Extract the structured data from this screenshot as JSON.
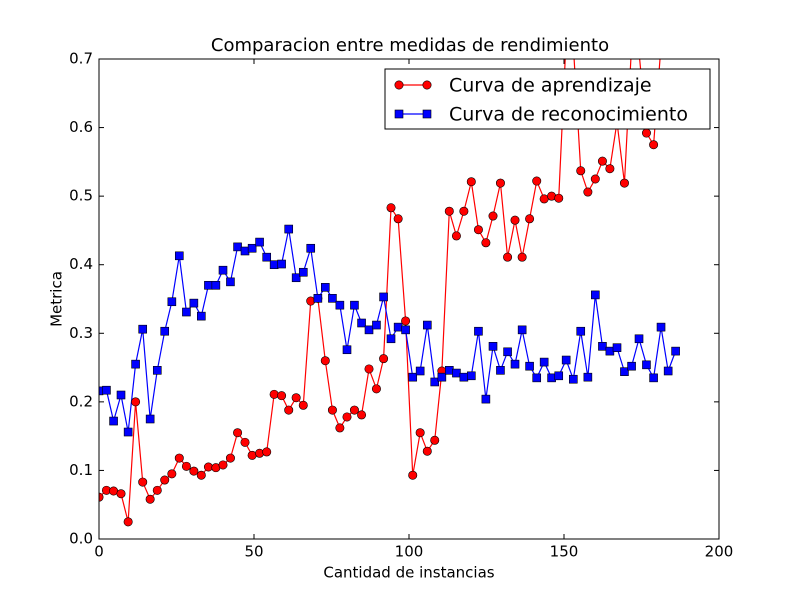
{
  "chart_data": {
    "type": "line",
    "title": "Comparacion entre medidas de rendimiento",
    "xlabel": "Cantidad de instancias",
    "ylabel": "Metrica",
    "x": [
      0,
      2.4,
      4.7,
      7.1,
      9.4,
      11.8,
      14.1,
      16.5,
      18.8,
      21.2,
      23.5,
      25.9,
      28.2,
      30.6,
      33.0,
      35.3,
      37.7,
      40.0,
      42.4,
      44.7,
      47.1,
      49.4,
      51.8,
      54.1,
      56.5,
      58.9,
      61.2,
      63.6,
      65.9,
      68.3,
      70.6,
      73.0,
      75.3,
      77.7,
      80.0,
      82.4,
      84.7,
      87.1,
      89.5,
      91.8,
      94.2,
      96.5,
      98.9,
      101.2,
      103.6,
      105.9,
      108.3,
      110.6,
      113.0,
      115.3,
      117.7,
      120.1,
      122.4,
      124.8,
      127.1,
      129.5,
      131.8,
      134.2,
      136.5,
      138.9,
      141.2,
      143.6,
      146.0,
      148.3,
      150.7,
      153.0,
      155.4,
      157.7,
      160.1,
      162.4,
      164.8,
      167.1,
      169.5,
      171.8,
      174.2,
      176.6,
      178.9,
      181.3,
      183.6,
      186.0
    ],
    "series": [
      {
        "name": "Curva de aprendizaje",
        "color": "#ff0000",
        "marker": "circle",
        "values": [
          0.061,
          0.071,
          0.07,
          0.066,
          0.025,
          0.2,
          0.083,
          0.058,
          0.071,
          0.086,
          0.095,
          0.118,
          0.106,
          0.099,
          0.093,
          0.105,
          0.104,
          0.108,
          0.118,
          0.155,
          0.141,
          0.122,
          0.125,
          0.127,
          0.211,
          0.209,
          0.188,
          0.206,
          0.195,
          0.347,
          0.351,
          0.26,
          0.188,
          0.162,
          0.178,
          0.188,
          0.181,
          0.248,
          0.219,
          0.263,
          0.483,
          0.467,
          0.318,
          0.093,
          0.155,
          0.128,
          0.144,
          0.245,
          0.478,
          0.442,
          0.478,
          0.521,
          0.451,
          0.432,
          0.471,
          0.519,
          0.411,
          0.465,
          0.411,
          0.467,
          0.522,
          0.496,
          0.5,
          0.497,
          0.73,
          0.72,
          0.537,
          0.506,
          0.525,
          0.551,
          0.54,
          0.608,
          0.519,
          0.72,
          0.71,
          0.592,
          0.575,
          0.72,
          0.74,
          0.75
        ]
      },
      {
        "name": "Curva de reconocimiento",
        "color": "#0000ff",
        "marker": "square",
        "values": [
          0.216,
          0.217,
          0.172,
          0.21,
          0.156,
          0.255,
          0.306,
          0.175,
          0.246,
          0.303,
          0.346,
          0.413,
          0.331,
          0.344,
          0.325,
          0.37,
          0.37,
          0.392,
          0.375,
          0.426,
          0.42,
          0.424,
          0.433,
          0.411,
          0.4,
          0.401,
          0.452,
          0.381,
          0.389,
          0.424,
          0.351,
          0.367,
          0.351,
          0.341,
          0.276,
          0.341,
          0.315,
          0.305,
          0.312,
          0.353,
          0.292,
          0.309,
          0.305,
          0.236,
          0.245,
          0.312,
          0.229,
          0.236,
          0.246,
          0.242,
          0.236,
          0.238,
          0.303,
          0.204,
          0.281,
          0.246,
          0.273,
          0.255,
          0.305,
          0.252,
          0.235,
          0.258,
          0.235,
          0.238,
          0.261,
          0.233,
          0.303,
          0.236,
          0.356,
          0.281,
          0.274,
          0.279,
          0.244,
          0.252,
          0.292,
          0.254,
          0.235,
          0.309,
          0.245,
          0.274
        ]
      }
    ],
    "xlim": [
      0,
      200
    ],
    "ylim": [
      0,
      0.7
    ],
    "xticks": [
      0,
      50,
      100,
      150,
      200
    ],
    "yticks": [
      {
        "value": 0,
        "label": "0.0"
      },
      {
        "value": 0.1,
        "label": "0.1"
      },
      {
        "value": 0.2,
        "label": "0.2"
      },
      {
        "value": 0.3,
        "label": "0.3"
      },
      {
        "value": 0.4,
        "label": "0.4"
      },
      {
        "value": 0.5,
        "label": "0.5"
      },
      {
        "value": 0.6,
        "label": "0.6"
      },
      {
        "value": 0.7,
        "label": "0.7"
      }
    ],
    "grid": false,
    "legend": "upper right"
  }
}
